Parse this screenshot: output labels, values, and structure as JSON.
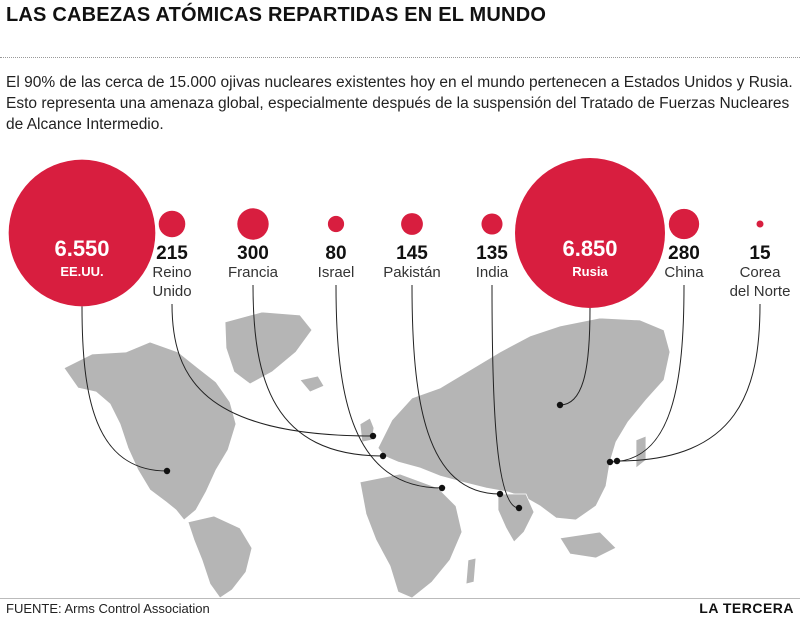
{
  "title": "LAS CABEZAS ATÓMICAS REPARTIDAS EN EL MUNDO",
  "intro": "El 90% de las cerca de 15.000 ojivas nucleares existentes hoy en el mundo pertenecen a Estados Unidos y Rusia. Esto representa una amenaza global, especialmente después de la suspensión del Tratado de Fuerzas Nucleares de Alcance Intermedio.",
  "source": "FUENTE: Arms Control Association",
  "brand": "LA TERCERA",
  "colors": {
    "bubble": "#d81e3f",
    "land": "#b5b5b5",
    "line": "#222222"
  },
  "chart_data": {
    "type": "bubble-map",
    "value_label": "cabezas atómicas",
    "countries": [
      {
        "value": 6550,
        "display": "6.550",
        "name": [
          "EE.UU."
        ]
      },
      {
        "value": 215,
        "display": "215",
        "name": [
          "Reino",
          "Unido"
        ]
      },
      {
        "value": 300,
        "display": "300",
        "name": [
          "Francia"
        ]
      },
      {
        "value": 80,
        "display": "80",
        "name": [
          "Israel"
        ]
      },
      {
        "value": 145,
        "display": "145",
        "name": [
          "Pakistán"
        ]
      },
      {
        "value": 135,
        "display": "135",
        "name": [
          "India"
        ]
      },
      {
        "value": 6850,
        "display": "6.850",
        "name": [
          "Rusia"
        ]
      },
      {
        "value": 280,
        "display": "280",
        "name": [
          "China"
        ]
      },
      {
        "value": 15,
        "display": "15",
        "name": [
          "Corea",
          "del Norte"
        ]
      }
    ]
  }
}
